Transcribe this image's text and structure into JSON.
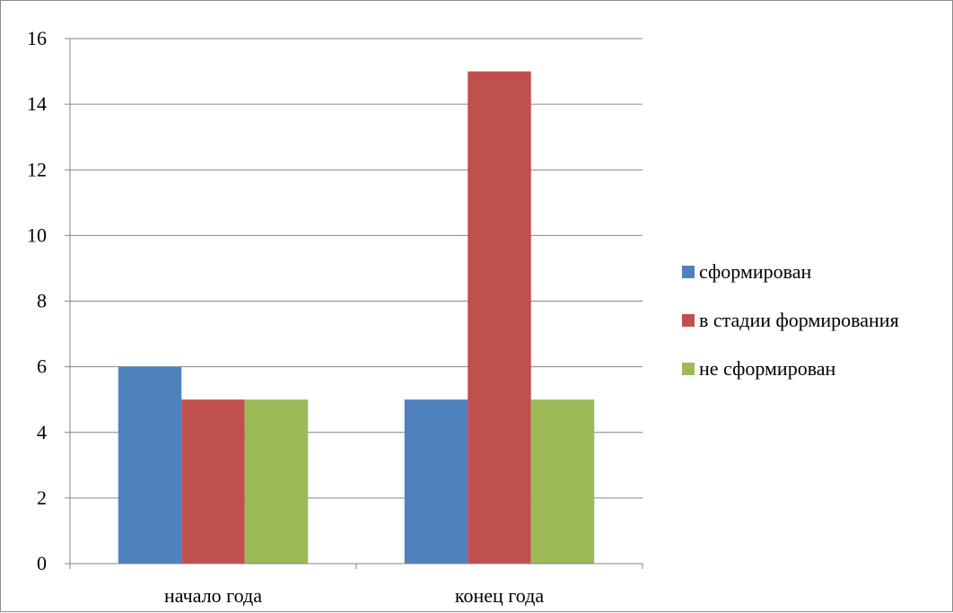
{
  "chart_data": {
    "type": "bar",
    "categories": [
      "начало года",
      "конец года"
    ],
    "series": [
      {
        "name": "сформирован",
        "values": [
          6,
          5
        ],
        "color": "#4F81BD"
      },
      {
        "name": "в стадии формирования",
        "values": [
          5,
          15
        ],
        "color": "#C0504D"
      },
      {
        "name": "не сформирован",
        "values": [
          5,
          5
        ],
        "color": "#9BBB59"
      }
    ],
    "title": "",
    "xlabel": "",
    "ylabel": "",
    "ylim": [
      0,
      16
    ],
    "yticks": [
      0,
      2,
      4,
      6,
      8,
      10,
      12,
      14,
      16
    ],
    "grid": true,
    "legend": "right"
  }
}
